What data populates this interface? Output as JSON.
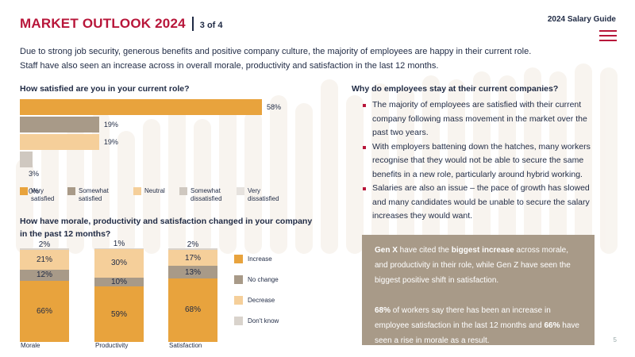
{
  "header": {
    "title": "MARKET OUTLOOK 2024",
    "page_indicator": "3 of 4",
    "guide_title": "2024 Salary Guide",
    "menu_icon": "hamburger-menu-icon"
  },
  "intro": "Due to strong job security, generous benefits and positive company culture, the majority of employees are happy in their current role. Staff have also seen an increase across in overall morale, productivity and satisfaction in the last 12 months.",
  "colors": {
    "brand": "#b8163a",
    "very_satisfied": "#e8a33d",
    "somewhat_satisfied": "#a89a88",
    "neutral": "#f5cf9a",
    "somewhat_dissatisfied": "#cfc8c0",
    "very_dissatisfied": "#e6e2de",
    "increase": "#e8a33d",
    "no_change": "#a89a88",
    "decrease": "#f5cf9a",
    "dont_know": "#d9d3cc",
    "box_bg": "#a89a88"
  },
  "chart_data": [
    {
      "type": "bar",
      "orientation": "horizontal",
      "title": "How satisfied are you in your current role?",
      "categories": [
        "Very satisfied",
        "Somewhat satisfied",
        "Neutral",
        "Somewhat dissatisfied",
        "Very dissatisfied"
      ],
      "values": [
        58,
        19,
        19,
        3,
        0
      ],
      "value_labels": [
        "58%",
        "19%",
        "19%",
        "3%",
        "0%"
      ],
      "xlim": [
        0,
        58
      ],
      "legend": [
        "Very satisfied",
        "Somewhat satisfied",
        "Neutral",
        "Somewhat dissatisfied",
        "Very dissatisfied"
      ],
      "legend_placement": "bottom"
    },
    {
      "type": "bar",
      "stacked": true,
      "title": "How have morale, productivity and satisfaction changed in your company in the past 12 months?",
      "categories": [
        "Morale",
        "Productivity",
        "Satisfaction"
      ],
      "series": [
        {
          "name": "Increase",
          "values": [
            66,
            59,
            68
          ],
          "labels": [
            "66%",
            "59%",
            "68%"
          ]
        },
        {
          "name": "No change",
          "values": [
            12,
            10,
            13
          ],
          "labels": [
            "12%",
            "10%",
            "13%"
          ]
        },
        {
          "name": "Decrease",
          "values": [
            21,
            30,
            17
          ],
          "labels": [
            "21%",
            "30%",
            "17%"
          ]
        },
        {
          "name": "Don't know",
          "values": [
            2,
            1,
            2
          ],
          "labels": [
            "2%",
            "1%",
            "2%"
          ]
        }
      ],
      "ylim": [
        0,
        100
      ],
      "legend_placement": "right"
    }
  ],
  "right": {
    "question": "Why do employees stay at their current companies?",
    "bullets": [
      "The majority of employees are satisfied with their current company following mass movement in the market over the past two years.",
      "With employers battening down the hatches, many workers recognise that they would not be able to secure the same benefits in a new role, particularly around hybrid working.",
      "Salaries are also an issue – the pace of growth has slowed and many candidates would be unable to secure the salary increases they would want."
    ]
  },
  "callout": {
    "p1_a": "Gen X",
    "p1_b": " have cited the ",
    "p1_c": "biggest increase",
    "p1_d": " across morale, and productivity in their role, while Gen Z have seen the biggest positive shift in satisfaction.",
    "p2_a": "68%",
    "p2_b": " of workers say there has been an increase in employee satisfaction in the last 12 months and ",
    "p2_c": "66%",
    "p2_d": " have seen a rise in morale as a result."
  },
  "page_number": "5"
}
